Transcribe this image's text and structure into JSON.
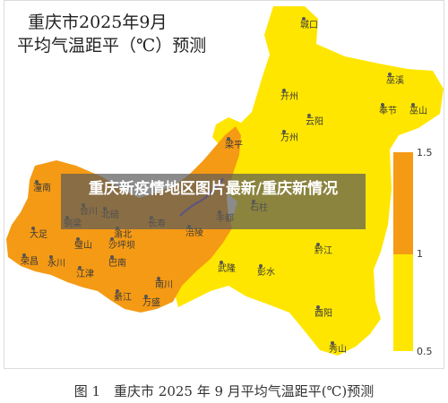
{
  "map": {
    "title_line1": "重庆市2025年9月",
    "title_line2": "平均气温距平（℃）预测",
    "colors": {
      "warm": "#f59a14",
      "mild": "#ffe600",
      "river": "#6a4fd0"
    },
    "cities": [
      {
        "name": "城口"
      },
      {
        "name": "巫溪"
      },
      {
        "name": "巫山"
      },
      {
        "name": "奉节"
      },
      {
        "name": "开州"
      },
      {
        "name": "云阳"
      },
      {
        "name": "万州"
      },
      {
        "name": "梁平"
      },
      {
        "name": "潼南"
      },
      {
        "name": "大足"
      },
      {
        "name": "荣昌"
      },
      {
        "name": "永川"
      },
      {
        "name": "合川"
      },
      {
        "name": "铜梁"
      },
      {
        "name": "北碚"
      },
      {
        "name": "璧山"
      },
      {
        "name": "沙坪坝"
      },
      {
        "name": "渝北"
      },
      {
        "name": "长寿"
      },
      {
        "name": "涪陵"
      },
      {
        "name": "丰都"
      },
      {
        "name": "石柱"
      },
      {
        "name": "江津"
      },
      {
        "name": "巴南"
      },
      {
        "name": "南川"
      },
      {
        "name": "綦江"
      },
      {
        "name": "万盛"
      },
      {
        "name": "武隆"
      },
      {
        "name": "彭水"
      },
      {
        "name": "黔江"
      },
      {
        "name": "酉阳"
      },
      {
        "name": "秀山"
      }
    ]
  },
  "legend": {
    "ticks": [
      "1.5",
      "1",
      "0.5"
    ]
  },
  "banner": {
    "text": "重庆新疫情地区图片最新/重庆新情况"
  },
  "caption": {
    "text": "图 1　重庆市 2025 年 9 月平均气温距平(℃)预测"
  }
}
